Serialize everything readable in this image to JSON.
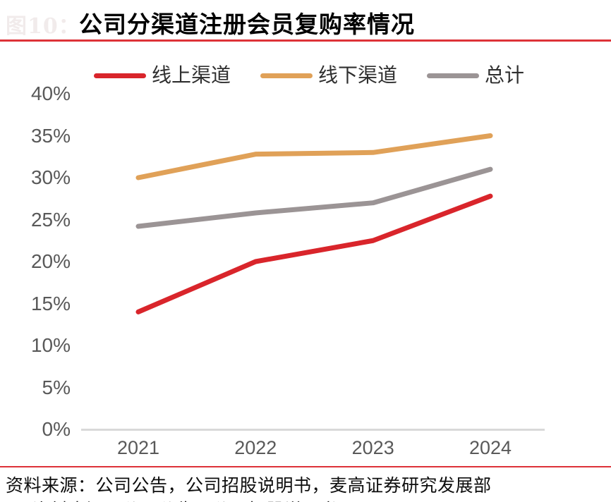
{
  "figure": {
    "faint_label": "图10：",
    "source": "资料来源：公司公告，公司招股说明书，麦高证券研究发展部",
    "clipped_line_fragment": "资料来源：公司公告，公司招股说明书"
  },
  "colors": {
    "accent_red": "#D9252B",
    "accent_orange": "#E0A158",
    "accent_gray": "#9B9495",
    "rule_red": "#DD3238",
    "axis_line": "#D9D9D9",
    "tick_text": "#595959"
  },
  "chart_data": {
    "type": "line",
    "title": "公司分渠道注册会员复购率情况",
    "categories": [
      "2021",
      "2022",
      "2023",
      "2024"
    ],
    "series": [
      {
        "name": "线上渠道",
        "color": "#D9252B",
        "values": [
          14,
          20,
          22.5,
          27.8
        ]
      },
      {
        "name": "线下渠道",
        "color": "#E0A158",
        "values": [
          30,
          32.8,
          33,
          35
        ]
      },
      {
        "name": "总计",
        "color": "#9B9495",
        "values": [
          24.2,
          25.8,
          27,
          31
        ]
      }
    ],
    "xlabel": "",
    "ylabel": "",
    "ylim": [
      0,
      40
    ],
    "ytick_step": 5,
    "ytick_labels": [
      "0%",
      "5%",
      "10%",
      "15%",
      "20%",
      "25%",
      "30%",
      "35%",
      "40%"
    ],
    "grid": false,
    "legend_position": "top"
  }
}
